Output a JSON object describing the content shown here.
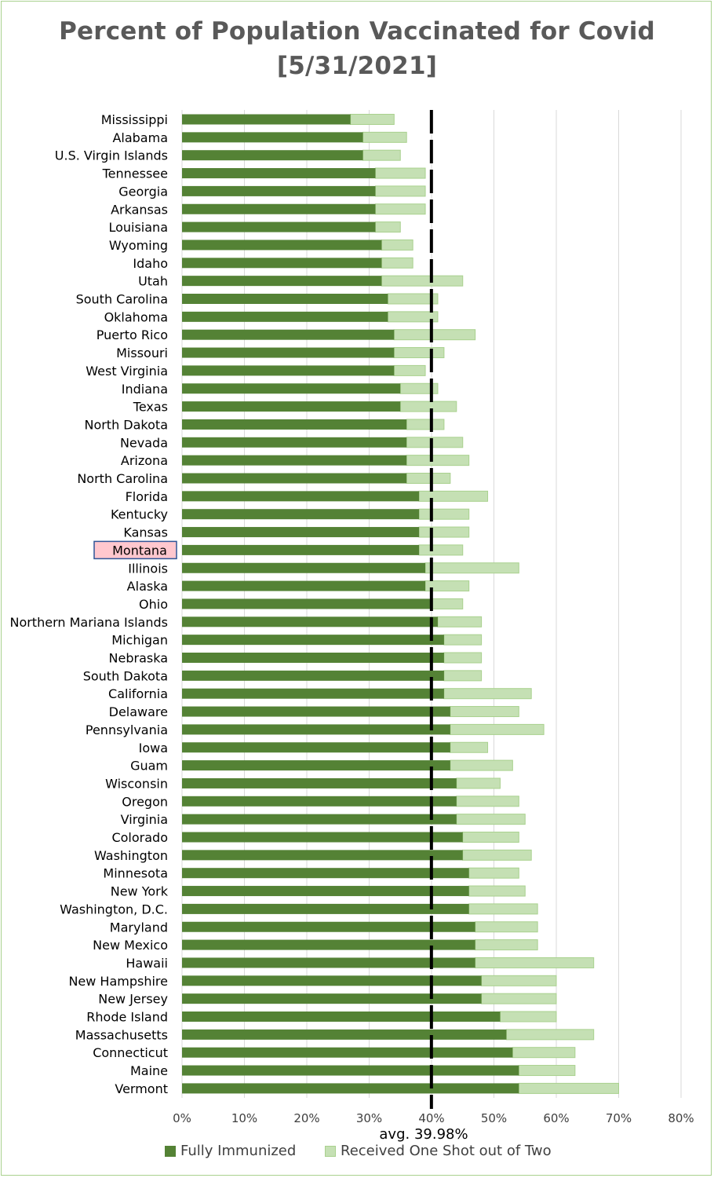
{
  "title": "Percent of Population Vaccinated for Covid",
  "subtitle": "[5/31/2021]",
  "avg_label": "avg. 39.98%",
  "highlight": "Montana",
  "colors": {
    "full": "#548235",
    "partial": "#c5e0b4",
    "partial_border": "#a9d18e",
    "grid": "#d9d9d9",
    "highlight_fill": "#ffc7ce",
    "highlight_border": "#2f5597"
  },
  "legend": [
    {
      "label": "Fully Immunized",
      "color": "#548235"
    },
    {
      "label": "Received One Shot out of Two",
      "color": "#c5e0b4"
    }
  ],
  "chart_data": {
    "type": "bar",
    "orientation": "horizontal",
    "stacked": true,
    "xlim": [
      0,
      80
    ],
    "x_ticks": [
      "0%",
      "10%",
      "20%",
      "30%",
      "40%",
      "50%",
      "60%",
      "70%",
      "80%"
    ],
    "grid": true,
    "legend_position": "bottom",
    "average": 39.98,
    "categories": [
      "Mississippi",
      "Alabama",
      "U.S. Virgin Islands",
      "Tennessee",
      "Georgia",
      "Arkansas",
      "Louisiana",
      "Wyoming",
      "Idaho",
      "Utah",
      "South Carolina",
      "Oklahoma",
      "Puerto Rico",
      "Missouri",
      "West Virginia",
      "Indiana",
      "Texas",
      "North Dakota",
      "Nevada",
      "Arizona",
      "North Carolina",
      "Florida",
      "Kentucky",
      "Kansas",
      "Montana",
      "Illinois",
      "Alaska",
      "Ohio",
      "Northern Mariana Islands",
      "Michigan",
      "Nebraska",
      "South Dakota",
      "California",
      "Delaware",
      "Pennsylvania",
      "Iowa",
      "Guam",
      "Wisconsin",
      "Oregon",
      "Virginia",
      "Colorado",
      "Washington",
      "Minnesota",
      "New York",
      "Washington, D.C.",
      "Maryland",
      "New Mexico",
      "Hawaii",
      "New Hampshire",
      "New Jersey",
      "Rhode Island",
      "Massachusetts",
      "Connecticut",
      "Maine",
      "Vermont"
    ],
    "series": [
      {
        "name": "Fully Immunized",
        "values": [
          27,
          29,
          29,
          31,
          31,
          31,
          31,
          32,
          32,
          32,
          33,
          33,
          34,
          34,
          34,
          35,
          35,
          36,
          36,
          36,
          36,
          38,
          38,
          38,
          38,
          39,
          39,
          40,
          41,
          42,
          42,
          42,
          42,
          43,
          43,
          43,
          43,
          44,
          44,
          44,
          45,
          45,
          46,
          46,
          46,
          47,
          47,
          47,
          48,
          48,
          51,
          52,
          53,
          54,
          54
        ]
      },
      {
        "name": "Received One Shot out of Two",
        "values": [
          7,
          7,
          6,
          8,
          8,
          8,
          4,
          5,
          5,
          13,
          8,
          8,
          13,
          8,
          5,
          6,
          9,
          6,
          9,
          10,
          7,
          11,
          8,
          8,
          7,
          15,
          7,
          5,
          7,
          6,
          6,
          6,
          14,
          11,
          15,
          6,
          10,
          7,
          10,
          11,
          9,
          11,
          8,
          9,
          11,
          10,
          10,
          19,
          12,
          12,
          9,
          14,
          10,
          9,
          16
        ]
      }
    ]
  }
}
